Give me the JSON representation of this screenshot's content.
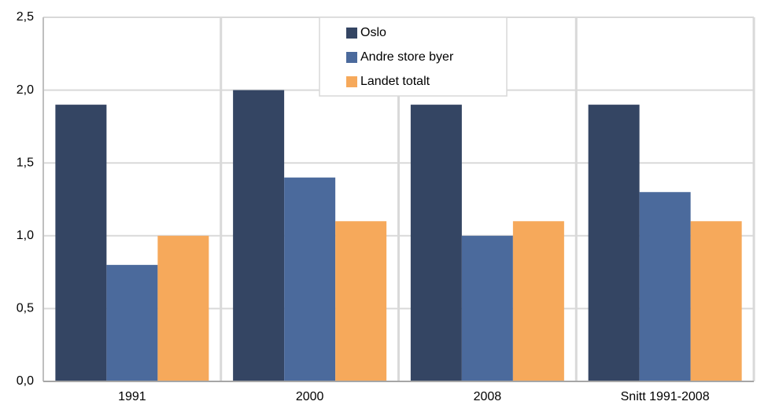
{
  "chart_data": {
    "type": "bar",
    "categories": [
      "1991",
      "2000",
      "2008",
      "Snitt 1991-2008"
    ],
    "series": [
      {
        "name": "Oslo",
        "color": "#344563",
        "values": [
          1.9,
          2.0,
          1.9,
          1.9
        ]
      },
      {
        "name": "Andre store byer",
        "color": "#4b6a9c",
        "values": [
          0.8,
          1.4,
          1.0,
          1.3
        ]
      },
      {
        "name": "Landet totalt",
        "color": "#f6a95b",
        "values": [
          1.0,
          1.1,
          1.1,
          1.1
        ]
      }
    ],
    "ylim": [
      0,
      2.5
    ],
    "yticks": [
      {
        "value": 0,
        "label": "0,0"
      },
      {
        "value": 0.5,
        "label": "0,5"
      },
      {
        "value": 1,
        "label": "1,0"
      },
      {
        "value": 1.5,
        "label": "1,5"
      },
      {
        "value": 2,
        "label": "2,0"
      },
      {
        "value": 2.5,
        "label": "2,5"
      }
    ],
    "grid": true,
    "legend": "top"
  }
}
